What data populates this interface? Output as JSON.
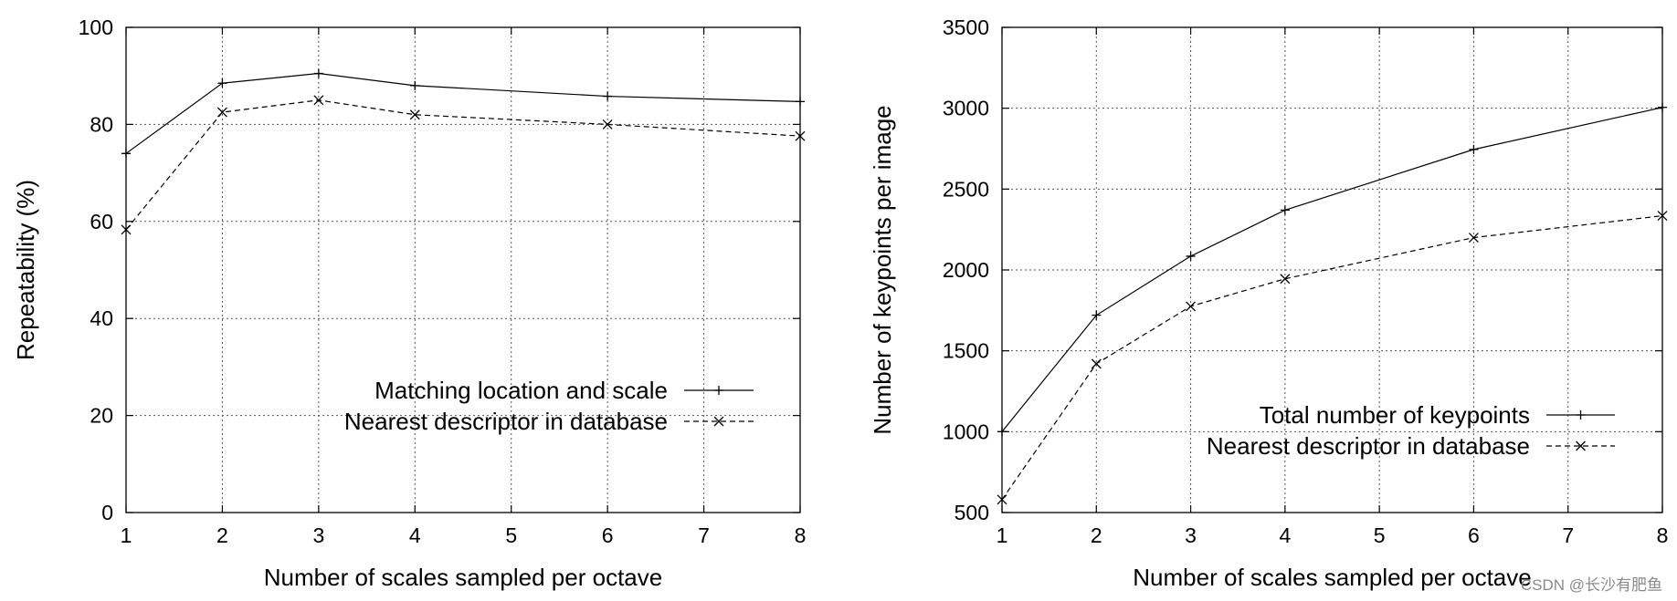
{
  "chart_data": [
    {
      "type": "line",
      "x": [
        1,
        2,
        3,
        4,
        6,
        8
      ],
      "series": [
        {
          "name": "Matching location and scale",
          "values": [
            74,
            88.5,
            90.5,
            88,
            85.8,
            84.7
          ],
          "marker": "plus",
          "dash": false
        },
        {
          "name": "Nearest descriptor in database",
          "values": [
            58.3,
            82.5,
            85,
            82,
            80,
            77.6
          ],
          "marker": "cross",
          "dash": true
        }
      ],
      "xlabel": "Number of scales sampled per octave",
      "ylabel": "Repeatability (%)",
      "xlim": [
        1,
        8
      ],
      "ylim": [
        0,
        100
      ],
      "xticks": [
        1,
        2,
        3,
        4,
        5,
        6,
        7,
        8
      ],
      "yticks": [
        0,
        20,
        40,
        60,
        80,
        100
      ],
      "grid": true,
      "legend_position": "lower-right"
    },
    {
      "type": "line",
      "x": [
        1,
        2,
        3,
        4,
        6,
        8
      ],
      "series": [
        {
          "name": "Total number of keypoints",
          "values": [
            1000,
            1720,
            2085,
            2370,
            2745,
            3005
          ],
          "marker": "plus",
          "dash": false
        },
        {
          "name": "Nearest descriptor in database",
          "values": [
            580,
            1420,
            1775,
            1945,
            2200,
            2335
          ],
          "marker": "cross",
          "dash": true
        }
      ],
      "xlabel": "Number of scales sampled per octave",
      "ylabel": "Number of keypoints per image",
      "xlim": [
        1,
        8
      ],
      "ylim": [
        500,
        3500
      ],
      "xticks": [
        1,
        2,
        3,
        4,
        5,
        6,
        7,
        8
      ],
      "yticks": [
        500,
        1000,
        1500,
        2000,
        2500,
        3000,
        3500
      ],
      "grid": true,
      "legend_position": "lower-right"
    }
  ],
  "watermark": "CSDN @长沙有肥鱼"
}
